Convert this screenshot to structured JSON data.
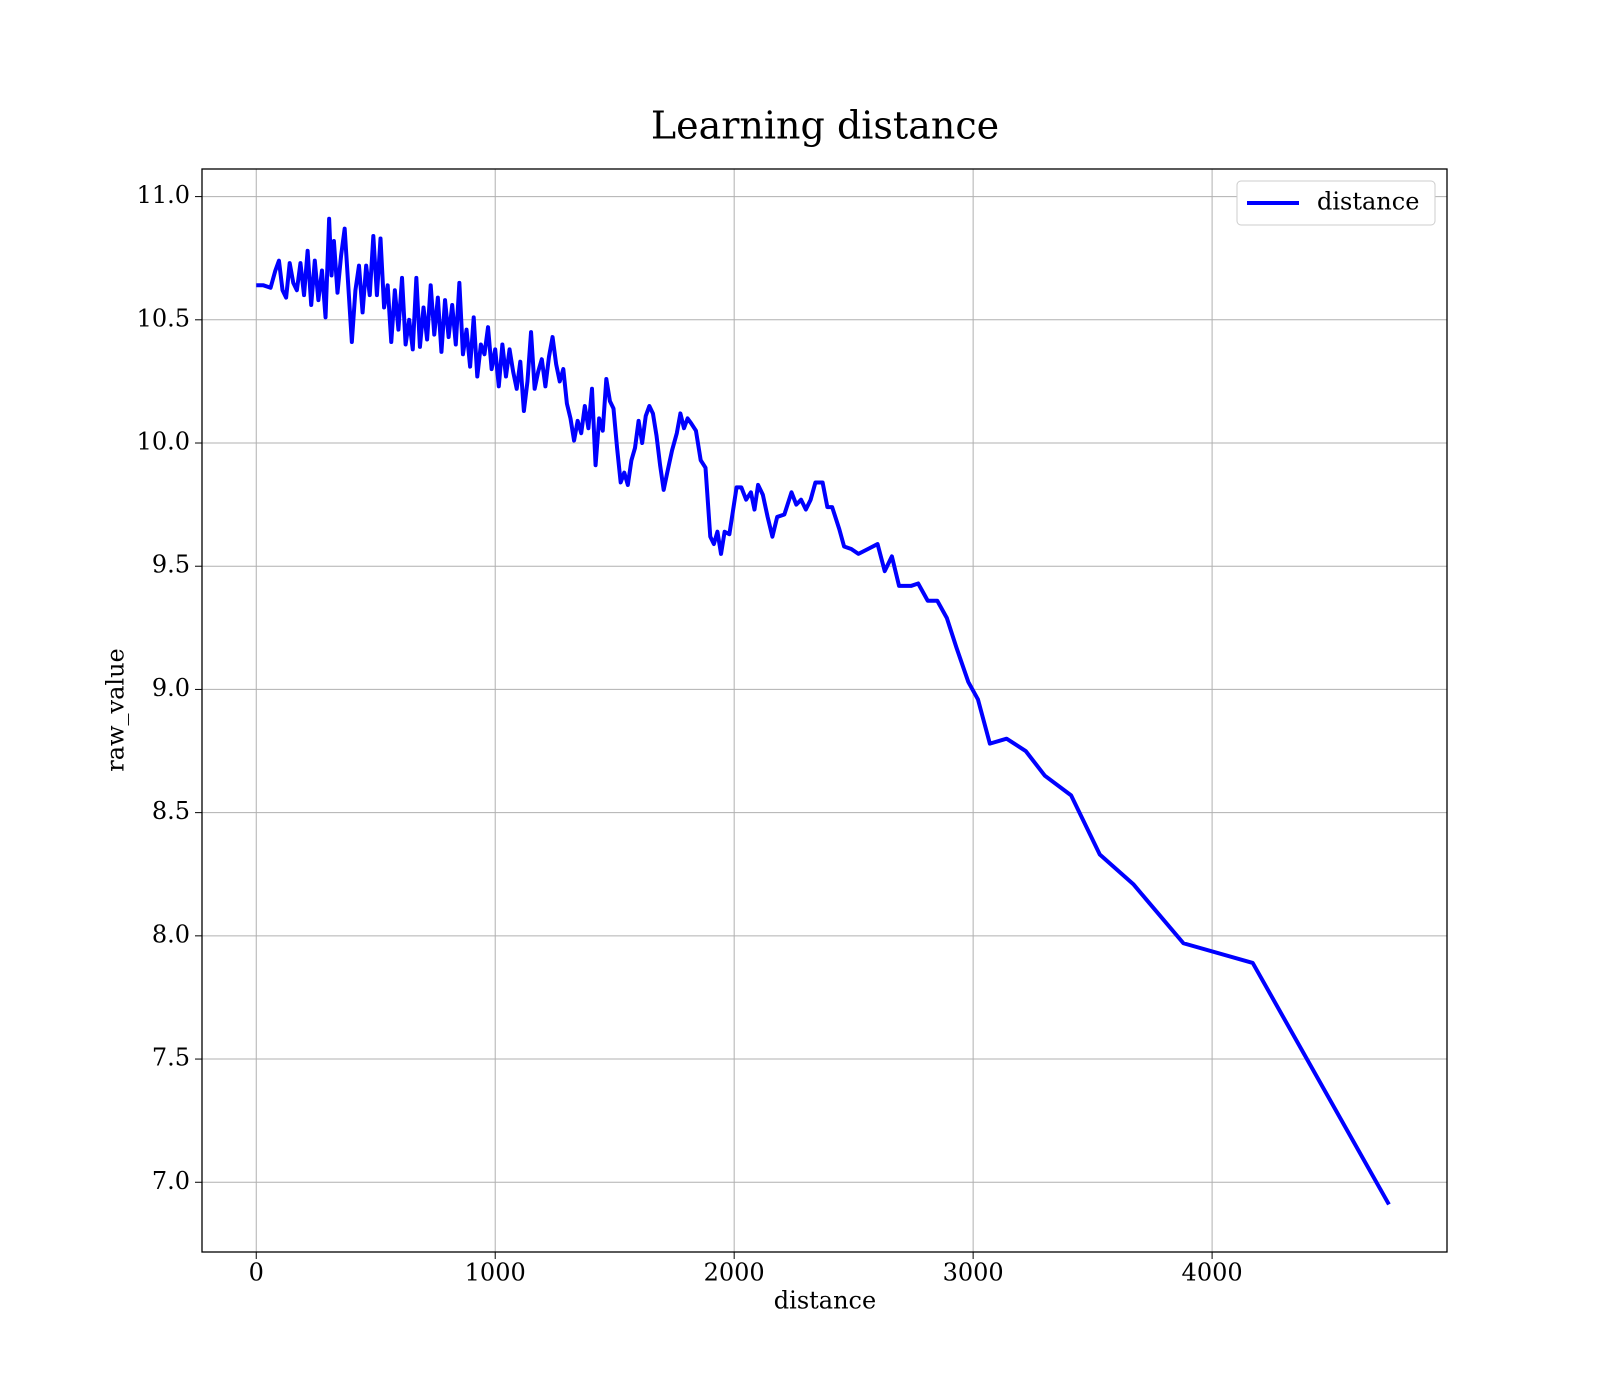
{
  "chart_data": {
    "type": "line",
    "title": "Learning distance",
    "xlabel": "distance",
    "ylabel": "raw_value",
    "x": [
      0,
      30,
      60,
      80,
      95,
      110,
      125,
      140,
      155,
      170,
      185,
      200,
      215,
      230,
      245,
      260,
      275,
      290,
      305,
      315,
      325,
      340,
      355,
      370,
      385,
      400,
      415,
      430,
      445,
      460,
      475,
      490,
      505,
      520,
      535,
      550,
      565,
      580,
      595,
      610,
      625,
      640,
      655,
      670,
      685,
      700,
      715,
      730,
      745,
      760,
      775,
      790,
      805,
      820,
      835,
      850,
      865,
      880,
      895,
      910,
      925,
      940,
      955,
      970,
      985,
      1000,
      1015,
      1030,
      1045,
      1060,
      1075,
      1090,
      1105,
      1120,
      1135,
      1150,
      1165,
      1180,
      1195,
      1210,
      1225,
      1240,
      1255,
      1270,
      1285,
      1300,
      1315,
      1330,
      1345,
      1360,
      1375,
      1390,
      1405,
      1420,
      1435,
      1450,
      1465,
      1480,
      1495,
      1510,
      1525,
      1540,
      1555,
      1570,
      1585,
      1600,
      1615,
      1630,
      1645,
      1660,
      1675,
      1690,
      1705,
      1720,
      1740,
      1760,
      1775,
      1790,
      1805,
      1820,
      1840,
      1860,
      1880,
      1900,
      1915,
      1930,
      1945,
      1960,
      1980,
      2010,
      2030,
      2050,
      2070,
      2085,
      2100,
      2120,
      2140,
      2160,
      2180,
      2210,
      2240,
      2260,
      2280,
      2300,
      2320,
      2340,
      2370,
      2390,
      2410,
      2440,
      2460,
      2490,
      2520,
      2560,
      2600,
      2630,
      2660,
      2690,
      2740,
      2770,
      2810,
      2850,
      2890,
      2930,
      2980,
      3020,
      3070,
      3140,
      3220,
      3300,
      3410,
      3530,
      3670,
      3880,
      4170,
      4740
    ],
    "series": [
      {
        "name": "distance",
        "color": "#0000ff",
        "values": [
          10.64,
          10.64,
          10.63,
          10.7,
          10.74,
          10.62,
          10.59,
          10.73,
          10.65,
          10.62,
          10.73,
          10.6,
          10.78,
          10.56,
          10.74,
          10.58,
          10.7,
          10.51,
          10.91,
          10.68,
          10.82,
          10.61,
          10.76,
          10.87,
          10.64,
          10.41,
          10.62,
          10.72,
          10.53,
          10.72,
          10.6,
          10.84,
          10.6,
          10.83,
          10.55,
          10.64,
          10.41,
          10.62,
          10.46,
          10.67,
          10.4,
          10.5,
          10.38,
          10.67,
          10.39,
          10.55,
          10.42,
          10.64,
          10.44,
          10.59,
          10.37,
          10.58,
          10.43,
          10.56,
          10.4,
          10.65,
          10.36,
          10.46,
          10.31,
          10.51,
          10.27,
          10.4,
          10.36,
          10.47,
          10.3,
          10.38,
          10.23,
          10.4,
          10.27,
          10.38,
          10.29,
          10.22,
          10.33,
          10.13,
          10.25,
          10.45,
          10.22,
          10.29,
          10.34,
          10.23,
          10.35,
          10.43,
          10.32,
          10.25,
          10.3,
          10.16,
          10.1,
          10.01,
          10.09,
          10.04,
          10.15,
          10.06,
          10.22,
          9.91,
          10.1,
          10.05,
          10.26,
          10.17,
          10.14,
          9.98,
          9.84,
          9.88,
          9.83,
          9.93,
          9.98,
          10.09,
          10.0,
          10.11,
          10.15,
          10.12,
          10.03,
          9.91,
          9.81,
          9.88,
          9.97,
          10.04,
          10.12,
          10.06,
          10.1,
          10.08,
          10.05,
          9.93,
          9.9,
          9.62,
          9.59,
          9.64,
          9.55,
          9.64,
          9.63,
          9.82,
          9.82,
          9.77,
          9.8,
          9.73,
          9.83,
          9.79,
          9.7,
          9.62,
          9.7,
          9.71,
          9.8,
          9.75,
          9.77,
          9.73,
          9.77,
          9.84,
          9.84,
          9.74,
          9.74,
          9.65,
          9.58,
          9.57,
          9.55,
          9.57,
          9.59,
          9.48,
          9.54,
          9.42,
          9.42,
          9.43,
          9.36,
          9.36,
          9.29,
          9.17,
          9.03,
          8.96,
          8.78,
          8.8,
          8.75,
          8.65,
          8.57,
          8.33,
          8.21,
          7.97,
          7.89,
          6.91
        ]
      }
    ],
    "xlim": [
      -227,
      4983
    ],
    "ylim": [
      6.717,
      11.112
    ],
    "xticks": [
      0,
      1000,
      2000,
      3000,
      4000
    ],
    "yticks": [
      {
        "value": 7,
        "label": "7.0"
      },
      7.5,
      {
        "value": 8,
        "label": "8.0"
      },
      8.5,
      {
        "value": 9,
        "label": "9.0"
      },
      9.5,
      {
        "value": 10,
        "label": "10.0"
      },
      10.5,
      {
        "value": 11,
        "label": "11.0"
      }
    ],
    "grid": true,
    "legend": "upper right"
  }
}
